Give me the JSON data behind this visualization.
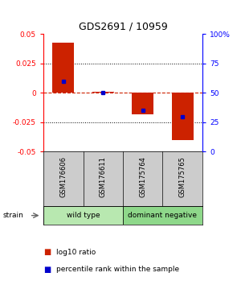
{
  "title": "GDS2691 / 10959",
  "samples": [
    "GSM176606",
    "GSM176611",
    "GSM175764",
    "GSM175765"
  ],
  "log10_ratio": [
    0.043,
    0.001,
    -0.018,
    -0.04
  ],
  "percentile_rank": [
    60,
    50,
    35,
    30
  ],
  "group_labels": [
    "wild type",
    "dominant negative"
  ],
  "group_colors": [
    "#b8e8b0",
    "#8ed88a"
  ],
  "strain_label": "strain",
  "ylim": [
    -0.05,
    0.05
  ],
  "yticks_left": [
    -0.05,
    -0.025,
    0,
    0.025,
    0.05
  ],
  "yticks_right": [
    0,
    25,
    50,
    75,
    100
  ],
  "bar_color": "#cc2200",
  "dot_color": "#0000cc",
  "grid_color": "#000000",
  "zero_line_color": "#cc2200",
  "bg_color": "#ffffff",
  "sample_bg": "#cccccc",
  "legend_red_label": "log10 ratio",
  "legend_blue_label": "percentile rank within the sample"
}
